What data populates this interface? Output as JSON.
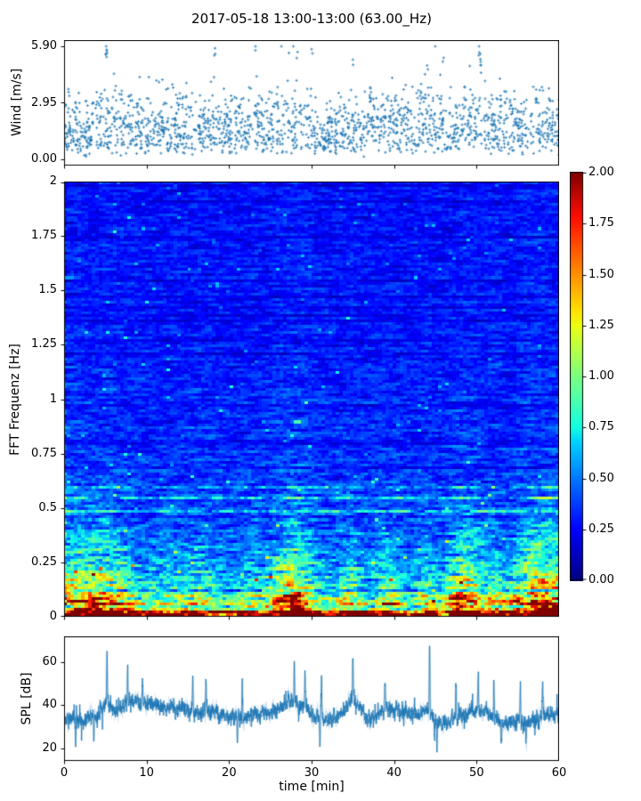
{
  "figure": {
    "title": "2017-05-18 13:00-13:00 (63.00_Hz)",
    "background": "#ffffff",
    "spine_color": "#000000",
    "accent_blue": "#1f77b4"
  },
  "chart_data": [
    {
      "id": "wind",
      "type": "scatter",
      "ylabel": "Wind [m/s]",
      "xlim": [
        0,
        60
      ],
      "ylim": [
        0,
        5.9
      ],
      "yticks": {
        "values": [
          0,
          2.95,
          5.9
        ],
        "labels": [
          "0.00",
          "2.95",
          "5.90"
        ]
      },
      "xticks": {
        "values": [
          0,
          10,
          20,
          30,
          40,
          50,
          60
        ],
        "labels": []
      },
      "marker": "plus",
      "marker_color": "#1f77b4",
      "n_points": 1850,
      "seed": 7,
      "mean_wind_by_minute": [
        1.5,
        1.6,
        1.5,
        1.7,
        1.9,
        2.3,
        2.2,
        2.1,
        2.2,
        2.0,
        1.9,
        1.8,
        1.9,
        2.0,
        1.8,
        1.9,
        2.0,
        1.9,
        1.8,
        1.7,
        1.6,
        1.7,
        1.9,
        2.0,
        2.1,
        2.2,
        2.3,
        2.2,
        2.4,
        2.2,
        1.6,
        1.3,
        1.4,
        1.6,
        1.9,
        2.1,
        2.0,
        2.2,
        2.4,
        2.2,
        2.0,
        1.9,
        2.0,
        2.2,
        2.5,
        2.1,
        1.8,
        1.9,
        2.1,
        2.3,
        2.6,
        2.2,
        2.0,
        1.9,
        1.8,
        1.7,
        1.6,
        1.7,
        1.8,
        1.9,
        1.8
      ],
      "spike_points": [
        {
          "t": 5.1,
          "v": 5.9
        },
        {
          "t": 5.15,
          "v": 5.72
        },
        {
          "t": 5.2,
          "v": 5.55
        },
        {
          "t": 18.3,
          "v": 5.8
        },
        {
          "t": 23.2,
          "v": 5.9
        },
        {
          "t": 28.3,
          "v": 5.6
        },
        {
          "t": 30.0,
          "v": 5.75
        },
        {
          "t": 35.0,
          "v": 5.2
        },
        {
          "t": 44.0,
          "v": 4.9
        },
        {
          "t": 46.0,
          "v": 5.3
        },
        {
          "t": 50.3,
          "v": 5.9
        },
        {
          "t": 50.45,
          "v": 5.5
        },
        {
          "t": 50.5,
          "v": 5.1
        }
      ]
    },
    {
      "id": "spectrogram",
      "type": "heatmap",
      "ylabel": "FFT Frequenz [Hz]",
      "xlim": [
        0,
        60
      ],
      "ylim": [
        0,
        2
      ],
      "yticks": {
        "values": [
          0,
          0.25,
          0.5,
          0.75,
          1,
          1.25,
          1.5,
          1.75,
          2
        ],
        "labels": [
          "0",
          "0.25",
          "0.5",
          "0.75",
          "1",
          "1.25",
          "1.5",
          "1.75",
          "2"
        ]
      },
      "xticks": {
        "values": [
          0,
          10,
          20,
          30,
          40,
          50,
          60
        ],
        "labels": []
      },
      "clim": [
        0,
        2
      ],
      "colormap": "jet",
      "colormap_stops": [
        [
          0.0,
          [
            0,
            0,
            128
          ]
        ],
        [
          0.125,
          [
            0,
            0,
            255
          ]
        ],
        [
          0.34,
          [
            0,
            210,
            255
          ]
        ],
        [
          0.375,
          [
            20,
            255,
            225
          ]
        ],
        [
          0.5,
          [
            125,
            255,
            130
          ]
        ],
        [
          0.625,
          [
            235,
            255,
            20
          ]
        ],
        [
          0.66,
          [
            255,
            225,
            0
          ]
        ],
        [
          0.89,
          [
            255,
            15,
            0
          ]
        ],
        [
          1.0,
          [
            128,
            0,
            0
          ]
        ]
      ],
      "colorbar_ticks": {
        "values": [
          0,
          0.25,
          0.5,
          0.75,
          1,
          1.25,
          1.5,
          1.75,
          2
        ],
        "labels": [
          "0.00",
          "0.25",
          "0.50",
          "0.75",
          "1.00",
          "1.25",
          "1.50",
          "1.75",
          "2.00"
        ]
      },
      "grid": {
        "cols": 140,
        "rows": 160
      },
      "seed": 3,
      "freq_mean_profile": [
        [
          0,
          1.95
        ],
        [
          0.008,
          1.7
        ],
        [
          0.02,
          1.25
        ],
        [
          0.05,
          0.85
        ],
        [
          0.09,
          0.65
        ],
        [
          0.14,
          0.52
        ],
        [
          0.2,
          0.44
        ],
        [
          0.3,
          0.37
        ],
        [
          0.45,
          0.32
        ],
        [
          0.65,
          0.29
        ],
        [
          1,
          0.27
        ]
      ],
      "time_gain_by_minute": [
        1.35,
        1.3,
        1.3,
        1.25,
        1.3,
        1.35,
        1.25,
        1.15,
        1.05,
        1.0,
        0.95,
        1.0,
        1.05,
        1.0,
        0.95,
        1.0,
        1.05,
        1.05,
        1.0,
        0.95,
        0.9,
        0.95,
        1.0,
        1.05,
        1.0,
        1.05,
        1.2,
        1.35,
        1.4,
        1.3,
        1.1,
        1.0,
        0.95,
        1.0,
        1.1,
        1.15,
        1.05,
        0.95,
        1.0,
        1.1,
        1.05,
        0.95,
        0.9,
        1.0,
        1.15,
        1.05,
        0.95,
        1.15,
        1.3,
        1.35,
        1.25,
        1.1,
        1.15,
        1.1,
        1.05,
        1.1,
        1.25,
        1.35,
        1.4,
        1.35,
        1.3
      ]
    },
    {
      "id": "spl",
      "type": "line",
      "ylabel": "SPL [dB]",
      "xlabel": "time [min]",
      "xlim": [
        0,
        60
      ],
      "ylim": [
        14,
        72
      ],
      "yticks": {
        "values": [
          20,
          40,
          60
        ],
        "labels": [
          "20",
          "40",
          "60"
        ]
      },
      "xticks": {
        "values": [
          0,
          10,
          20,
          30,
          40,
          50,
          60
        ],
        "labels": [
          "0",
          "10",
          "20",
          "30",
          "40",
          "50",
          "60"
        ]
      },
      "line_color": "#1f77b4",
      "seed": 11,
      "samples_per_minute": 60,
      "mean_db_by_minute": [
        33,
        34,
        33,
        34,
        35,
        40,
        39,
        40,
        42,
        42,
        41,
        40,
        39,
        38,
        38,
        38,
        37,
        38,
        37,
        36,
        34,
        35,
        35,
        36,
        36,
        37,
        38,
        41,
        41,
        39,
        36,
        33,
        33,
        34,
        38,
        44,
        38,
        33,
        36,
        38,
        38,
        37,
        36,
        36,
        37,
        33,
        31,
        33,
        35,
        36,
        38,
        36,
        34,
        33,
        32,
        33,
        32,
        33,
        35,
        36,
        36
      ],
      "peak_spikes": [
        {
          "t": 5.2,
          "v": 65
        },
        {
          "t": 7.7,
          "v": 60
        },
        {
          "t": 9.5,
          "v": 52
        },
        {
          "t": 15.6,
          "v": 52
        },
        {
          "t": 17.2,
          "v": 51
        },
        {
          "t": 21.6,
          "v": 52
        },
        {
          "t": 27.9,
          "v": 60
        },
        {
          "t": 29.2,
          "v": 55
        },
        {
          "t": 31.2,
          "v": 52
        },
        {
          "t": 35.0,
          "v": 62
        },
        {
          "t": 38.9,
          "v": 53
        },
        {
          "t": 44.3,
          "v": 71
        },
        {
          "t": 47.5,
          "v": 50
        },
        {
          "t": 50.2,
          "v": 57
        },
        {
          "t": 52.1,
          "v": 50
        },
        {
          "t": 55.3,
          "v": 49
        },
        {
          "t": 58.0,
          "v": 48
        }
      ],
      "dip_spikes": [
        {
          "t": 1.4,
          "v": 20
        },
        {
          "t": 3.6,
          "v": 22
        },
        {
          "t": 21.0,
          "v": 23
        },
        {
          "t": 31.0,
          "v": 22
        },
        {
          "t": 44.9,
          "v": 24
        },
        {
          "t": 45.2,
          "v": 21
        },
        {
          "t": 53.0,
          "v": 23
        },
        {
          "t": 56.0,
          "v": 20
        }
      ]
    }
  ]
}
